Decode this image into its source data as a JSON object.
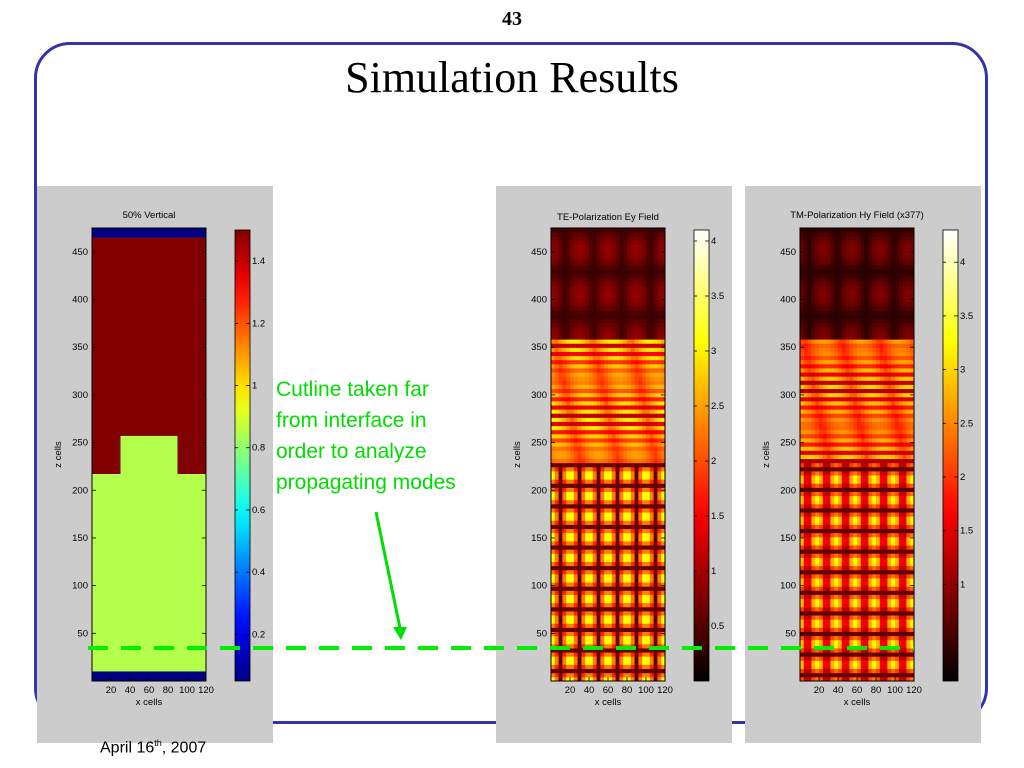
{
  "slide": {
    "page_number": "43",
    "title": "Simulation Results",
    "footer_date_main": "April 16",
    "footer_date_sup": "th",
    "footer_date_end": ", 2007",
    "annotation_lines": [
      "Cutline taken far",
      "from interface in",
      "order to analyze",
      "propagating modes"
    ],
    "colors": {
      "frame": "#3333aa",
      "annotation": "#00dd00"
    }
  },
  "chart_data": [
    {
      "type": "heatmap",
      "title": "50% Vertical",
      "xlabel": "x cells",
      "ylabel": "z cells",
      "x_ticks": [
        "20",
        "40",
        "60",
        "80",
        "100",
        "120"
      ],
      "y_ticks": [
        "50",
        "100",
        "150",
        "200",
        "250",
        "300",
        "350",
        "400",
        "450"
      ],
      "xlim": [
        0,
        120
      ],
      "ylim": [
        0,
        475
      ],
      "colorbar": {
        "colormap": "jet",
        "ticks": [
          "0.2",
          "0.4",
          "0.6",
          "0.8",
          "1",
          "1.2",
          "1.4"
        ],
        "range": [
          0.05,
          1.5
        ]
      },
      "regions": [
        {
          "label": "substrate",
          "x": [
            0,
            120
          ],
          "z": [
            465,
            475
          ],
          "value": 0.05
        },
        {
          "label": "upper",
          "x": [
            0,
            120
          ],
          "z": [
            217,
            465
          ],
          "value": 1.5
        },
        {
          "label": "lower",
          "x": [
            0,
            120
          ],
          "z": [
            10,
            217
          ],
          "value": 0.85
        },
        {
          "label": "step",
          "x": [
            30,
            90
          ],
          "z": [
            217,
            257
          ],
          "value": 0.85
        },
        {
          "label": "bottom",
          "x": [
            0,
            120
          ],
          "z": [
            0,
            10
          ],
          "value": 0.05
        }
      ]
    },
    {
      "type": "heatmap",
      "title": "TE-Polarization Ey Field",
      "xlabel": "x cells",
      "ylabel": "z cells",
      "x_ticks": [
        "20",
        "40",
        "60",
        "80",
        "100",
        "120"
      ],
      "y_ticks": [
        "50",
        "100",
        "150",
        "200",
        "250",
        "300",
        "350",
        "400",
        "450"
      ],
      "xlim": [
        0,
        120
      ],
      "ylim": [
        0,
        475
      ],
      "interface_z": 360,
      "colorbar": {
        "colormap": "hot",
        "ticks": [
          "0.5",
          "1",
          "1.5",
          "2",
          "2.5",
          "3",
          "3.5",
          "4"
        ],
        "range": [
          0,
          4.1
        ]
      }
    },
    {
      "type": "heatmap",
      "title": "TM-Polarization Hy Field (x377)",
      "xlabel": "x cells",
      "ylabel": "z cells",
      "x_ticks": [
        "20",
        "40",
        "60",
        "80",
        "100",
        "120"
      ],
      "y_ticks": [
        "50",
        "100",
        "150",
        "200",
        "250",
        "300",
        "350",
        "400",
        "450"
      ],
      "xlim": [
        0,
        120
      ],
      "ylim": [
        0,
        475
      ],
      "interface_z": 360,
      "colorbar": {
        "colormap": "hot",
        "ticks": [
          "1",
          "1.5",
          "2",
          "2.5",
          "3",
          "3.5",
          "4"
        ],
        "range": [
          0.1,
          4.3
        ]
      }
    }
  ]
}
